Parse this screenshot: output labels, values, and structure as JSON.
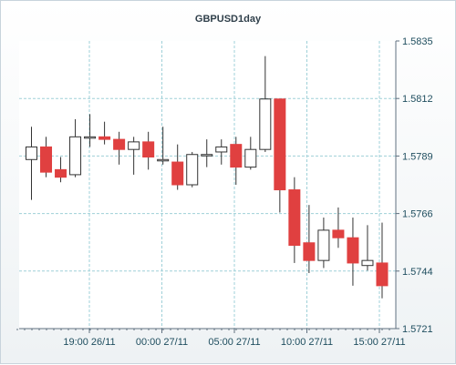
{
  "chart_data": {
    "type": "candlestick",
    "title": "GBPUSD1day",
    "grid": true,
    "ylim": [
      1.5721,
      1.5835
    ],
    "y_ticks": [
      "1.5835",
      "1.5812",
      "1.5789",
      "1.5766",
      "1.5744",
      "1.5721"
    ],
    "x_ticks": [
      "19:00 26/11",
      "00:00 27/11",
      "05:00 27/11",
      "10:00 27/11",
      "15:00 27/11"
    ],
    "colors": {
      "up": "#ffffff",
      "down": "#e04040",
      "grid": "#9fd0d8",
      "axis": "#607080"
    },
    "candles": [
      {
        "open": 1.5788,
        "high": 1.5801,
        "low": 1.5772,
        "close": 1.5793
      },
      {
        "open": 1.5793,
        "high": 1.5797,
        "low": 1.5781,
        "close": 1.5783
      },
      {
        "open": 1.5784,
        "high": 1.5789,
        "low": 1.5779,
        "close": 1.5781
      },
      {
        "open": 1.5782,
        "high": 1.5804,
        "low": 1.5781,
        "close": 1.5797
      },
      {
        "open": 1.5797,
        "high": 1.5806,
        "low": 1.5793,
        "close": 1.5797
      },
      {
        "open": 1.5797,
        "high": 1.5803,
        "low": 1.5794,
        "close": 1.5796
      },
      {
        "open": 1.5796,
        "high": 1.5799,
        "low": 1.5786,
        "close": 1.5792
      },
      {
        "open": 1.5792,
        "high": 1.5797,
        "low": 1.5782,
        "close": 1.5795
      },
      {
        "open": 1.5795,
        "high": 1.5799,
        "low": 1.5784,
        "close": 1.5789
      },
      {
        "open": 1.5788,
        "high": 1.5801,
        "low": 1.5786,
        "close": 1.5788
      },
      {
        "open": 1.5787,
        "high": 1.5794,
        "low": 1.5776,
        "close": 1.5778
      },
      {
        "open": 1.5778,
        "high": 1.5791,
        "low": 1.5777,
        "close": 1.579
      },
      {
        "open": 1.579,
        "high": 1.5796,
        "low": 1.5785,
        "close": 1.579
      },
      {
        "open": 1.5791,
        "high": 1.5796,
        "low": 1.5786,
        "close": 1.5793
      },
      {
        "open": 1.5794,
        "high": 1.5797,
        "low": 1.5778,
        "close": 1.5785
      },
      {
        "open": 1.5785,
        "high": 1.5797,
        "low": 1.5784,
        "close": 1.5792
      },
      {
        "open": 1.5792,
        "high": 1.5829,
        "low": 1.5791,
        "close": 1.5812
      },
      {
        "open": 1.5812,
        "high": 1.5812,
        "low": 1.5767,
        "close": 1.5776
      },
      {
        "open": 1.5776,
        "high": 1.5781,
        "low": 1.5747,
        "close": 1.5754
      },
      {
        "open": 1.5755,
        "high": 1.577,
        "low": 1.5743,
        "close": 1.5748
      },
      {
        "open": 1.5748,
        "high": 1.5765,
        "low": 1.5745,
        "close": 1.576
      },
      {
        "open": 1.576,
        "high": 1.5769,
        "low": 1.5753,
        "close": 1.5757
      },
      {
        "open": 1.5757,
        "high": 1.5765,
        "low": 1.5738,
        "close": 1.5747
      },
      {
        "open": 1.5746,
        "high": 1.5762,
        "low": 1.5744,
        "close": 1.5748
      },
      {
        "open": 1.5747,
        "high": 1.5763,
        "low": 1.5733,
        "close": 1.5738
      }
    ]
  }
}
